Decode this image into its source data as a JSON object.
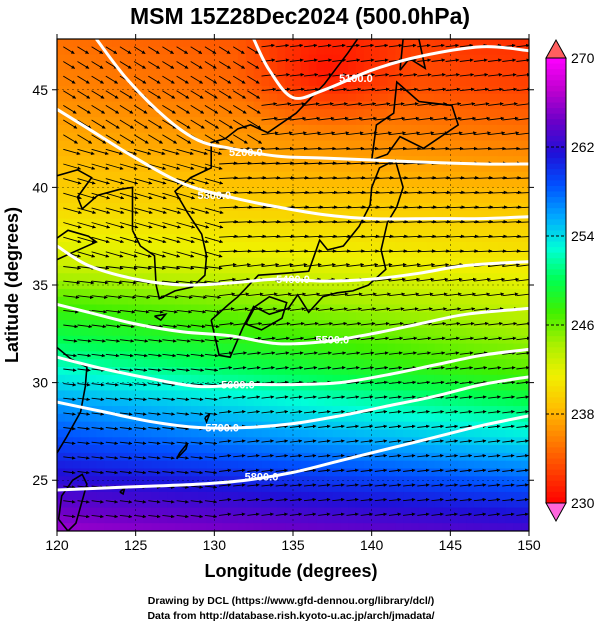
{
  "title": "MSM 15Z28Dec2024 (500.0hPa)",
  "axes": {
    "xlabel": "Longitude (degrees)",
    "ylabel": "Latitude  (degrees)",
    "xlim": [
      120,
      150
    ],
    "ylim": [
      22.4,
      47.6
    ],
    "xticks": [
      "120",
      "125",
      "130",
      "135",
      "140",
      "145",
      "150"
    ],
    "yticks": [
      "25",
      "30",
      "35",
      "40",
      "45"
    ]
  },
  "colorbar": {
    "min": 230,
    "max": 270,
    "labels": [
      "270",
      "262",
      "254",
      "246",
      "238",
      "230"
    ],
    "colors": [
      "#ff00ff",
      "#c000d0",
      "#6a00c8",
      "#1f10d8",
      "#0050ff",
      "#00a8ff",
      "#00ffd8",
      "#00ff50",
      "#40f000",
      "#a8f000",
      "#f0f000",
      "#ffc000",
      "#ff8000",
      "#ff4000",
      "#ff0000"
    ]
  },
  "credits": {
    "line1": "Drawing by DCL (https://www.gfd-dennou.org/library/dcl/)",
    "line2": "Data from http://database.rish.kyoto-u.ac.jp/arch/jmadata/"
  },
  "chart_data": {
    "type": "heatmap",
    "field": "temperature (K) at 500.0hPa, shaded; geopotential height contours (white); wind vectors",
    "contour_labels": [
      "5100.0",
      "5200.0",
      "5300.0",
      "5400.0",
      "5500.0",
      "5600.0",
      "5700.0",
      "5800.0"
    ],
    "contours": [
      {
        "label": "5100.0",
        "points": [
          [
            132.5,
            47.6
          ],
          [
            133.5,
            46.0
          ],
          [
            135.0,
            44.6
          ],
          [
            137.0,
            45.0
          ],
          [
            140.0,
            46.0
          ],
          [
            143.0,
            46.7
          ],
          [
            147.0,
            47.2
          ],
          [
            150.0,
            47.0
          ]
        ],
        "label_at": [
          139.0,
          45.6
        ]
      },
      {
        "label": "5200.0",
        "points": [
          [
            122.5,
            47.6
          ],
          [
            124.5,
            45.5
          ],
          [
            127.0,
            43.5
          ],
          [
            129.0,
            42.4
          ],
          [
            131.0,
            42.0
          ],
          [
            134.0,
            41.6
          ],
          [
            137.0,
            41.5
          ],
          [
            140.0,
            41.4
          ],
          [
            143.0,
            41.3
          ],
          [
            147.0,
            41.2
          ],
          [
            150.0,
            41.2
          ]
        ],
        "label_at": [
          132.0,
          41.8
        ]
      },
      {
        "label": "5300.0",
        "points": [
          [
            120.0,
            44.0
          ],
          [
            122.0,
            43.0
          ],
          [
            125.0,
            41.5
          ],
          [
            128.0,
            40.2
          ],
          [
            131.0,
            39.5
          ],
          [
            134.0,
            39.0
          ],
          [
            137.0,
            38.6
          ],
          [
            140.0,
            38.4
          ],
          [
            144.0,
            38.4
          ],
          [
            147.0,
            38.4
          ],
          [
            150.0,
            38.5
          ]
        ],
        "label_at": [
          130.0,
          39.6
        ]
      },
      {
        "label": "5400.0",
        "points": [
          [
            120.0,
            37.0
          ],
          [
            122.0,
            36.0
          ],
          [
            125.0,
            35.3
          ],
          [
            128.0,
            35.0
          ],
          [
            131.0,
            35.1
          ],
          [
            134.0,
            35.3
          ],
          [
            137.0,
            35.2
          ],
          [
            140.0,
            35.3
          ],
          [
            143.0,
            35.6
          ],
          [
            146.0,
            36.0
          ],
          [
            150.0,
            36.2
          ]
        ],
        "label_at": [
          135.0,
          35.3
        ]
      },
      {
        "label": "5500.0",
        "points": [
          [
            120.0,
            34.0
          ],
          [
            122.0,
            33.6
          ],
          [
            125.0,
            33.0
          ],
          [
            128.0,
            32.6
          ],
          [
            131.0,
            32.4
          ],
          [
            134.0,
            32.0
          ],
          [
            137.0,
            32.1
          ],
          [
            140.0,
            32.5
          ],
          [
            143.0,
            33.0
          ],
          [
            146.0,
            33.5
          ],
          [
            150.0,
            33.8
          ]
        ],
        "label_at": [
          137.5,
          32.2
        ]
      },
      {
        "label": "5600.0",
        "points": [
          [
            120.0,
            31.3
          ],
          [
            123.0,
            30.7
          ],
          [
            126.0,
            30.2
          ],
          [
            129.0,
            29.8
          ],
          [
            132.0,
            29.9
          ],
          [
            135.0,
            29.9
          ],
          [
            138.0,
            30.0
          ],
          [
            141.0,
            30.4
          ],
          [
            144.0,
            30.9
          ],
          [
            147.0,
            31.4
          ],
          [
            150.0,
            31.7
          ]
        ],
        "label_at": [
          131.5,
          29.9
        ]
      },
      {
        "label": "5700.0",
        "points": [
          [
            120.0,
            29.0
          ],
          [
            123.0,
            28.5
          ],
          [
            126.0,
            28.0
          ],
          [
            129.0,
            27.7
          ],
          [
            132.0,
            27.7
          ],
          [
            135.0,
            27.9
          ],
          [
            138.0,
            28.3
          ],
          [
            141.0,
            28.8
          ],
          [
            144.0,
            29.3
          ],
          [
            147.0,
            29.9
          ],
          [
            150.0,
            30.3
          ]
        ],
        "label_at": [
          130.5,
          27.7
        ]
      },
      {
        "label": "5800.0",
        "points": [
          [
            120.0,
            24.5
          ],
          [
            123.0,
            24.6
          ],
          [
            126.0,
            24.7
          ],
          [
            129.0,
            24.8
          ],
          [
            132.0,
            25.0
          ],
          [
            135.0,
            25.4
          ],
          [
            138.0,
            26.0
          ],
          [
            141.0,
            26.6
          ],
          [
            144.0,
            27.2
          ],
          [
            147.0,
            27.8
          ],
          [
            150.0,
            28.3
          ]
        ],
        "label_at": [
          133.0,
          25.2
        ]
      }
    ],
    "temperature_anchors": [
      {
        "lat": 47.6,
        "lon_west": 235,
        "lon_east": 232
      },
      {
        "lat": 45.0,
        "lon_west": 236,
        "lon_east": 233
      },
      {
        "lat": 42.0,
        "lon_west": 238,
        "lon_east": 236
      },
      {
        "lat": 39.0,
        "lon_west": 240,
        "lon_east": 239
      },
      {
        "lat": 36.0,
        "lon_west": 243,
        "lon_east": 241
      },
      {
        "lat": 34.0,
        "lon_west": 247,
        "lon_east": 243
      },
      {
        "lat": 31.0,
        "lon_west": 252,
        "lon_east": 246
      },
      {
        "lat": 29.0,
        "lon_west": 256,
        "lon_east": 250
      },
      {
        "lat": 27.0,
        "lon_west": 259,
        "lon_east": 254
      },
      {
        "lat": 25.0,
        "lon_west": 262,
        "lon_east": 258
      },
      {
        "lat": 22.4,
        "lon_west": 266,
        "lon_east": 263
      }
    ]
  }
}
